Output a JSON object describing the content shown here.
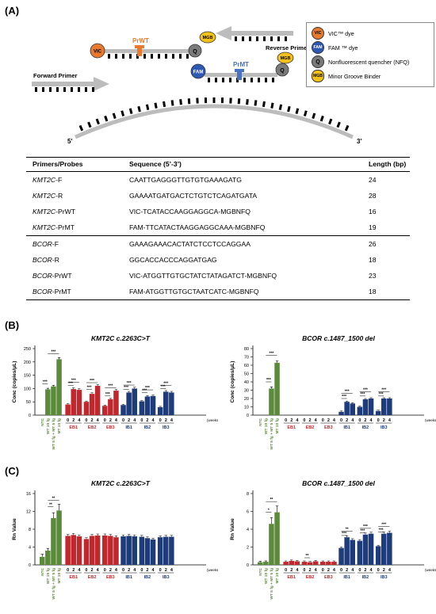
{
  "panels": {
    "a": "(A)",
    "b": "(B)",
    "c": "(C)"
  },
  "diagram": {
    "vic": "VIC",
    "fam": "FAM",
    "q": "Q",
    "mgb": "MGB",
    "prwt": "PrWT",
    "prmt": "PrMT",
    "forward_primer": "Forward Primer",
    "reverse_primer": "Reverse Primer",
    "five_prime": "5'",
    "three_prime": "3'"
  },
  "legend": {
    "items": [
      {
        "icon": "VIC",
        "label": "VIC™ dye",
        "color": "#e8792d"
      },
      {
        "icon": "FAM",
        "label": "FAM ™ dye",
        "color": "#2f58b5"
      },
      {
        "icon": "Q",
        "label": "Nonfluorescent quencher (NFQ)",
        "color": "#7a7a7a"
      },
      {
        "icon": "MGB",
        "label": "Minor Groove Binder",
        "color": "#f2c21b"
      }
    ]
  },
  "table": {
    "headers": [
      "Primers/Probes",
      "Sequence (5’-3’)",
      "Length (bp)"
    ],
    "rows": [
      {
        "gene": "KMT2C",
        "suffix": "-F",
        "seq": "CAATTGAGGGTTGTGTGAAAGATG",
        "len": "24"
      },
      {
        "gene": "KMT2C",
        "suffix": "-R",
        "seq": "GAAAATGATGACTCTGTCTCAGATGATA",
        "len": "28"
      },
      {
        "gene": "KMT2C",
        "suffix": "-PrWT",
        "seq": "VIC-TCATACCAAGGAGGCA-MGBNFQ",
        "len": "16"
      },
      {
        "gene": "KMT2C",
        "suffix": "-PrMT",
        "seq": "FAM-TTCATACTAAGGAGGCAAA-MGBNFQ",
        "len": "19"
      },
      {
        "gene": "BCOR",
        "suffix": "-F",
        "seq": "GAAAGAAACACTATCTCCTCCAGGAA",
        "len": "26"
      },
      {
        "gene": "BCOR",
        "suffix": "-R",
        "seq": "GGCACCACCCAGGATGAG",
        "len": "18"
      },
      {
        "gene": "BCOR",
        "suffix": "-PrWT",
        "seq": "VIC-ATGGTTGTGCTATCTATAGATCT-MGBNFQ",
        "len": "23"
      },
      {
        "gene": "BCOR",
        "suffix": "-PrMT",
        "seq": "FAM-ATGGTTGTGCTAATCATC-MGBNFQ",
        "len": "18"
      }
    ]
  },
  "chart_data": [
    {
      "type": "bar",
      "panel": "B",
      "title": "KMT2C c.2263C>T",
      "ylabel": "Conc (copies/μL)",
      "ylim": [
        0,
        250
      ],
      "yticks": [
        0,
        50,
        100,
        150,
        200,
        250
      ],
      "ctrl_labels": [
        "NTC",
        "WT 10 fg",
        "WT 5 fg + MT 5 fg",
        "MT 10 fg"
      ],
      "ctrl_values": [
        0,
        97,
        108,
        210
      ],
      "ctrl_err": [
        0,
        4,
        4,
        6
      ],
      "groups": [
        {
          "name": "EB1",
          "values": [
            40,
            98,
            95
          ]
        },
        {
          "name": "EB2",
          "values": [
            50,
            80,
            110
          ]
        },
        {
          "name": "EB3",
          "values": [
            35,
            60,
            92
          ]
        },
        {
          "name": "IB1",
          "values": [
            38,
            85,
            100
          ]
        },
        {
          "name": "IB2",
          "values": [
            52,
            70,
            72
          ]
        },
        {
          "name": "IB3",
          "values": [
            30,
            88,
            85
          ]
        }
      ],
      "week_labels": [
        "0",
        "2",
        "4"
      ],
      "xunit": "(weeks)",
      "sig": [
        {
          "x1": 0,
          "x2": 1,
          "y": 118,
          "t": "***"
        },
        {
          "x1": 1,
          "x2": 3,
          "y": 230,
          "t": "***"
        },
        {
          "x1": 0,
          "x2": 1,
          "y": 112,
          "g": 0,
          "t": "***"
        },
        {
          "x1": 0,
          "x2": 2,
          "y": 123,
          "g": 0,
          "t": "***"
        },
        {
          "x1": 0,
          "x2": 1,
          "y": 97,
          "g": 1,
          "t": "***"
        },
        {
          "x1": 0,
          "x2": 2,
          "y": 122,
          "g": 1,
          "t": "***"
        },
        {
          "x1": 0,
          "x2": 1,
          "y": 72,
          "g": 2,
          "t": "***"
        },
        {
          "x1": 0,
          "x2": 2,
          "y": 103,
          "g": 2,
          "t": "***"
        },
        {
          "x1": 0,
          "x2": 1,
          "y": 97,
          "g": 3,
          "t": "***"
        },
        {
          "x1": 0,
          "x2": 2,
          "y": 113,
          "g": 3,
          "t": "***"
        },
        {
          "x1": 0,
          "x2": 1,
          "y": 85,
          "g": 4,
          "t": "***"
        },
        {
          "x1": 0,
          "x2": 2,
          "y": 95,
          "g": 4,
          "t": "***"
        },
        {
          "x1": 0,
          "x2": 1,
          "y": 100,
          "g": 5,
          "t": "***"
        },
        {
          "x1": 0,
          "x2": 2,
          "y": 112,
          "g": 5,
          "t": "***"
        }
      ]
    },
    {
      "type": "bar",
      "panel": "B",
      "title": "BCOR c.1487_1500 del",
      "ylabel": "Conc (copies/μL)",
      "ylim": [
        0,
        80
      ],
      "yticks": [
        0,
        10,
        20,
        30,
        40,
        50,
        60,
        70,
        80
      ],
      "ctrl_labels": [
        "NTC",
        "WT 10 fg",
        "WT 5 fg + MT 5 fg",
        "MT 10 fg"
      ],
      "ctrl_values": [
        0,
        0,
        32,
        63
      ],
      "ctrl_err": [
        0,
        0,
        2,
        2
      ],
      "groups": [
        {
          "name": "EB1",
          "values": [
            0,
            0,
            0
          ]
        },
        {
          "name": "EB2",
          "values": [
            0,
            0,
            0
          ]
        },
        {
          "name": "EB3",
          "values": [
            0,
            0,
            0
          ]
        },
        {
          "name": "IB1",
          "values": [
            4,
            16,
            14
          ]
        },
        {
          "name": "IB2",
          "values": [
            10,
            19,
            20
          ]
        },
        {
          "name": "IB3",
          "values": [
            5,
            20,
            20
          ]
        }
      ],
      "week_labels": [
        "0",
        "2",
        "4"
      ],
      "xunit": "(weeks)",
      "sig": [
        {
          "x1": 1,
          "x2": 2,
          "y": 40,
          "t": "***"
        },
        {
          "x1": 1,
          "x2": 3,
          "y": 72,
          "t": "***"
        },
        {
          "x1": 0,
          "x2": 1,
          "y": 20,
          "g": 3,
          "t": "***"
        },
        {
          "x1": 0,
          "x2": 2,
          "y": 26,
          "g": 3,
          "t": "***"
        },
        {
          "x1": 0,
          "x2": 1,
          "y": 23,
          "g": 4,
          "t": "***"
        },
        {
          "x1": 0,
          "x2": 2,
          "y": 28,
          "g": 4,
          "t": "***"
        },
        {
          "x1": 0,
          "x2": 1,
          "y": 23,
          "g": 5,
          "t": "***"
        },
        {
          "x1": 0,
          "x2": 2,
          "y": 28,
          "g": 5,
          "t": "***"
        }
      ]
    },
    {
      "type": "bar",
      "panel": "C",
      "title": "KMT2C c.2263C>T",
      "ylabel": "Rn Value",
      "ylim": [
        0,
        16
      ],
      "yticks": [
        0,
        4,
        8,
        12,
        16
      ],
      "ctrl_labels": [
        "NTC",
        "WT 10 fg",
        "WT 5 fg + MT 5 fg",
        "MT 10 fg"
      ],
      "ctrl_values": [
        1.8,
        3.2,
        10.5,
        12.2
      ],
      "ctrl_err": [
        0.6,
        0.5,
        1.2,
        1.4
      ],
      "groups": [
        {
          "name": "EB1",
          "values": [
            6.5,
            6.7,
            6.4
          ]
        },
        {
          "name": "EB2",
          "values": [
            5.8,
            6.5,
            6.6
          ]
        },
        {
          "name": "EB3",
          "values": [
            6.6,
            6.5,
            6.2
          ]
        },
        {
          "name": "IB1",
          "values": [
            6.4,
            6.5,
            6.4
          ]
        },
        {
          "name": "IB2",
          "values": [
            6.3,
            6.0,
            5.7
          ]
        },
        {
          "name": "IB3",
          "values": [
            6.2,
            6.3,
            6.3
          ]
        }
      ],
      "week_labels": [
        "0",
        "2",
        "4"
      ],
      "xunit": "(weeks)",
      "sig": [
        {
          "x1": 1,
          "x2": 2,
          "y": 13.1,
          "t": "**"
        },
        {
          "x1": 1,
          "x2": 3,
          "y": 14.5,
          "t": "**"
        }
      ]
    },
    {
      "type": "bar",
      "panel": "C",
      "title": "BCOR c.1487_1500 del",
      "ylabel": "Rn Value",
      "ylim": [
        0,
        8
      ],
      "yticks": [
        0,
        2,
        4,
        6,
        8
      ],
      "ctrl_labels": [
        "NTC",
        "WT 10 fg",
        "WT 5 fg + MT 5 fg",
        "MT 10 fg"
      ],
      "ctrl_values": [
        0.3,
        0.35,
        4.6,
        5.9
      ],
      "ctrl_err": [
        0.1,
        0.1,
        0.7,
        0.7
      ],
      "groups": [
        {
          "name": "EB1",
          "values": [
            0.35,
            0.45,
            0.4
          ]
        },
        {
          "name": "EB2",
          "values": [
            0.35,
            0.3,
            0.4
          ]
        },
        {
          "name": "EB3",
          "values": [
            0.35,
            0.35,
            0.35
          ]
        },
        {
          "name": "IB1",
          "values": [
            1.9,
            3.1,
            2.8
          ]
        },
        {
          "name": "IB2",
          "values": [
            2.7,
            3.4,
            3.5
          ]
        },
        {
          "name": "IB3",
          "values": [
            2.1,
            3.5,
            3.6
          ]
        }
      ],
      "week_labels": [
        "0",
        "2",
        "4"
      ],
      "xunit": "(weeks)",
      "sig": [
        {
          "x1": 1,
          "x2": 2,
          "y": 5.9,
          "t": "*"
        },
        {
          "x1": 1,
          "x2": 3,
          "y": 7.1,
          "t": "**"
        },
        {
          "x1": 0,
          "x2": 1,
          "y": 0.8,
          "g": 1,
          "t": "**"
        },
        {
          "x1": 0,
          "x2": 1,
          "y": 3.3,
          "g": 3,
          "t": "***"
        },
        {
          "x1": 0,
          "x2": 2,
          "y": 3.8,
          "g": 3,
          "t": "**"
        },
        {
          "x1": 0,
          "x2": 1,
          "y": 3.6,
          "g": 4,
          "t": "***"
        },
        {
          "x1": 0,
          "x2": 2,
          "y": 4.1,
          "g": 4,
          "t": "***"
        },
        {
          "x1": 0,
          "x2": 1,
          "y": 3.7,
          "g": 5,
          "t": "***"
        },
        {
          "x1": 0,
          "x2": 2,
          "y": 4.3,
          "g": 5,
          "t": "***"
        }
      ]
    }
  ],
  "colors": {
    "control": "#5a8a3a",
    "eb_label": "#c0282d",
    "eb_bar": "#c0282d",
    "ib": "#1e3c7a"
  }
}
